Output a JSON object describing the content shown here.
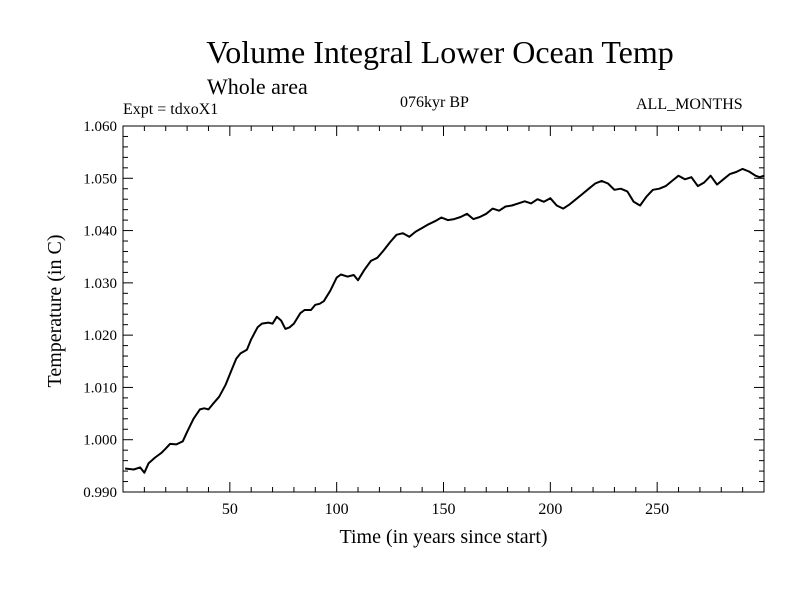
{
  "header": {
    "title": "Volume Integral Lower Ocean Temp",
    "subtitle": "Whole area",
    "experiment": "Expt = tdxoX1",
    "period": "076kyr BP",
    "months": "ALL_MONTHS"
  },
  "chart_data": {
    "type": "line",
    "title": "Volume Integral Lower Ocean Temp",
    "xlabel": "Time (in years since start)",
    "ylabel": "Temperature (in C)",
    "xlim": [
      0,
      300
    ],
    "ylim": [
      0.99,
      1.06
    ],
    "x_ticks": [
      50,
      100,
      150,
      200,
      250
    ],
    "x_tick_labels": [
      "50",
      "100",
      "150",
      "200",
      "250"
    ],
    "y_ticks": [
      0.99,
      1.0,
      1.01,
      1.02,
      1.03,
      1.04,
      1.05,
      1.06
    ],
    "y_tick_labels": [
      "0.990",
      "1.000",
      "1.010",
      "1.020",
      "1.030",
      "1.040",
      "1.050",
      "1.060"
    ],
    "grid": false,
    "series": [
      {
        "name": "Volume Integral Lower Ocean Temp",
        "x": [
          1,
          5,
          8,
          10,
          12,
          15,
          18,
          20,
          22,
          25,
          28,
          30,
          33,
          36,
          38,
          40,
          42,
          45,
          48,
          50,
          53,
          55,
          58,
          60,
          63,
          65,
          68,
          70,
          72,
          74,
          76,
          78,
          80,
          83,
          85,
          88,
          90,
          92,
          94,
          97,
          100,
          102,
          105,
          108,
          110,
          113,
          116,
          119,
          122,
          125,
          128,
          131,
          134,
          137,
          140,
          143,
          146,
          149,
          152,
          155,
          158,
          161,
          164,
          167,
          170,
          173,
          176,
          179,
          182,
          185,
          188,
          191,
          194,
          197,
          200,
          203,
          206,
          209,
          212,
          215,
          218,
          221,
          224,
          227,
          230,
          233,
          236,
          239,
          242,
          245,
          248,
          251,
          254,
          257,
          260,
          263,
          266,
          269,
          272,
          275,
          278,
          281,
          284,
          287,
          290,
          293,
          296,
          298,
          300
        ],
        "values": [
          0.9945,
          0.9943,
          0.9947,
          0.9937,
          0.9955,
          0.9966,
          0.9975,
          0.9983,
          0.9992,
          0.9991,
          0.9997,
          1.0015,
          1.004,
          1.0058,
          1.006,
          1.0058,
          1.0068,
          1.0082,
          1.0105,
          1.0125,
          1.0155,
          1.0165,
          1.0172,
          1.0192,
          1.0215,
          1.0222,
          1.0224,
          1.0222,
          1.0235,
          1.0228,
          1.0212,
          1.0215,
          1.0222,
          1.0242,
          1.0248,
          1.0248,
          1.0258,
          1.026,
          1.0265,
          1.0285,
          1.031,
          1.0316,
          1.0312,
          1.0315,
          1.0305,
          1.0325,
          1.0342,
          1.0348,
          1.0362,
          1.0378,
          1.0392,
          1.0395,
          1.0388,
          1.0398,
          1.0405,
          1.0412,
          1.0418,
          1.0425,
          1.042,
          1.0422,
          1.0426,
          1.0432,
          1.0422,
          1.0426,
          1.0432,
          1.0442,
          1.0438,
          1.0446,
          1.0448,
          1.0452,
          1.0456,
          1.0452,
          1.046,
          1.0455,
          1.0462,
          1.0448,
          1.0442,
          1.045,
          1.046,
          1.047,
          1.048,
          1.049,
          1.0495,
          1.049,
          1.0478,
          1.048,
          1.0475,
          1.0455,
          1.0448,
          1.0465,
          1.0478,
          1.048,
          1.0485,
          1.0495,
          1.0505,
          1.0498,
          1.0502,
          1.0485,
          1.0492,
          1.0505,
          1.0488,
          1.0498,
          1.0508,
          1.0512,
          1.0518,
          1.0513,
          1.0505,
          1.0502,
          1.0505
        ]
      }
    ]
  }
}
